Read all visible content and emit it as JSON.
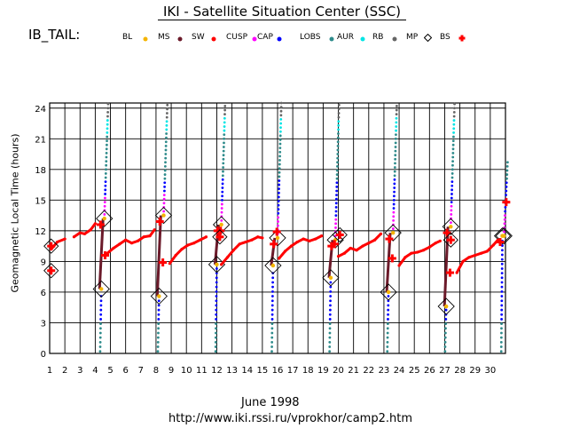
{
  "header": {
    "title": "IKI - Satellite Situation Center (SSC)"
  },
  "panel": {
    "label": "IB_TAIL:"
  },
  "legend": [
    {
      "label": "BL",
      "color": "#f4b400",
      "shape": "dot"
    },
    {
      "label": "MS",
      "color": "#f4b400",
      "shape": "dot"
    },
    {
      "label": "SW",
      "color": "#6b1a2a",
      "shape": "dot"
    },
    {
      "label": "CUSP",
      "color": "#ff0000",
      "shape": "dot"
    },
    {
      "label": "CAP",
      "color": "#ff00ff",
      "shape": "dot"
    },
    {
      "label": "LOBS",
      "color": "#0000ff",
      "shape": "dot"
    },
    {
      "label": "AUR",
      "color": "#2e8b8b",
      "shape": "dot"
    },
    {
      "label": "RB",
      "color": "#00e5e5",
      "shape": "dot"
    },
    {
      "label": "MP",
      "color": "#666666",
      "shape": "dot"
    },
    {
      "label": "BS",
      "color": "#000000",
      "shape": "diamond"
    },
    {
      "label": "",
      "color": "#ff0000",
      "shape": "cross"
    }
  ],
  "footer": {
    "date": "June    1998",
    "url": "http://www.iki.rssi.ru/vprokhor/camp2.htm"
  },
  "chart_data": {
    "type": "scatter",
    "title": "IKI - Satellite Situation Center (SSC)",
    "xlabel": "June 1998",
    "ylabel": "Geomagnetic Local Time (hours)",
    "xlim": [
      1,
      31
    ],
    "ylim": [
      0,
      24.5
    ],
    "xticks": [
      "1",
      "2",
      "3",
      "4",
      "5",
      "6",
      "7",
      "8",
      "9",
      "10",
      "11",
      "12",
      "13",
      "14",
      "15",
      "16",
      "17",
      "18",
      "19",
      "20",
      "21",
      "22",
      "23",
      "24",
      "25",
      "26",
      "27",
      "28",
      "29",
      "30"
    ],
    "yticks": [
      "0",
      "3",
      "6",
      "9",
      "12",
      "15",
      "18",
      "21",
      "24"
    ],
    "grid": true,
    "sw_track": [
      [
        1.1,
        10.2
      ],
      [
        1.5,
        10.9
      ],
      [
        2,
        11.2
      ],
      [
        2.6,
        11.4
      ],
      [
        3,
        11.8
      ],
      [
        3.3,
        11.7
      ],
      [
        3.7,
        12.1
      ],
      [
        4,
        12.7
      ],
      [
        4.8,
        9.8
      ],
      [
        5.2,
        10.3
      ],
      [
        5.6,
        10.7
      ],
      [
        6,
        11.1
      ],
      [
        6.4,
        10.8
      ],
      [
        6.8,
        11.0
      ],
      [
        7.2,
        11.4
      ],
      [
        7.6,
        11.5
      ],
      [
        7.9,
        12.1
      ],
      [
        8.9,
        8.8
      ],
      [
        9.3,
        9.6
      ],
      [
        9.7,
        10.2
      ],
      [
        10.1,
        10.6
      ],
      [
        10.5,
        10.8
      ],
      [
        10.9,
        11.1
      ],
      [
        11.3,
        11.4
      ],
      [
        12.3,
        8.7
      ],
      [
        12.7,
        9.4
      ],
      [
        13.1,
        10.1
      ],
      [
        13.5,
        10.7
      ],
      [
        13.9,
        10.9
      ],
      [
        14.3,
        11.1
      ],
      [
        14.7,
        11.4
      ],
      [
        15.0,
        11.3
      ],
      [
        16.1,
        9.3
      ],
      [
        16.5,
        10.0
      ],
      [
        16.9,
        10.5
      ],
      [
        17.3,
        10.9
      ],
      [
        17.7,
        11.2
      ],
      [
        18.1,
        11.0
      ],
      [
        18.5,
        11.2
      ],
      [
        18.9,
        11.5
      ],
      [
        20.0,
        9.5
      ],
      [
        20.4,
        9.8
      ],
      [
        20.8,
        10.3
      ],
      [
        21.2,
        10.1
      ],
      [
        21.6,
        10.5
      ],
      [
        22.0,
        10.8
      ],
      [
        22.4,
        11.1
      ],
      [
        22.8,
        11.7
      ],
      [
        24.0,
        8.6
      ],
      [
        24.4,
        9.4
      ],
      [
        24.8,
        9.8
      ],
      [
        25.2,
        9.9
      ],
      [
        25.6,
        10.1
      ],
      [
        26.0,
        10.4
      ],
      [
        26.4,
        10.8
      ],
      [
        26.7,
        11.0
      ],
      [
        27.8,
        7.9
      ],
      [
        28.2,
        9.0
      ],
      [
        28.6,
        9.4
      ],
      [
        29.0,
        9.6
      ],
      [
        29.4,
        9.8
      ],
      [
        29.8,
        10.0
      ],
      [
        30.2,
        10.6
      ],
      [
        30.5,
        11.1
      ]
    ],
    "orbits": [
      {
        "x_low": 4.4,
        "x_high": 4.7,
        "bs_low": 6.3,
        "bs_high": 13.2,
        "up_start": 4.6,
        "up_top": 24.5
      },
      {
        "x_low": 8.2,
        "x_high": 8.6,
        "bs_low": 5.6,
        "bs_high": 13.5,
        "up_start": 8.5,
        "up_top": 24.5
      },
      {
        "x_low": 12.0,
        "x_high": 12.4,
        "bs_low": 8.7,
        "bs_high": 12.6,
        "up_start": 12.3,
        "up_top": 24.5
      },
      {
        "x_low": 15.7,
        "x_high": 16.1,
        "bs_low": 8.6,
        "bs_high": 11.3,
        "up_start": 16.0,
        "up_top": 24.5
      },
      {
        "x_low": 19.5,
        "x_high": 19.9,
        "bs_low": 7.4,
        "bs_high": 11.1,
        "up_start": 19.8,
        "up_top": 24.5
      },
      {
        "x_low": 23.3,
        "x_high": 23.7,
        "bs_low": 6.0,
        "bs_high": 11.8,
        "up_start": 23.6,
        "up_top": 24.5
      },
      {
        "x_low": 27.1,
        "x_high": 27.5,
        "bs_low": 4.6,
        "bs_high": 12.4,
        "up_start": 27.4,
        "up_top": 24.5
      },
      {
        "x_low": 30.8,
        "x_high": 31.0,
        "bs_low": 11.5,
        "bs_high": 11.5,
        "up_start": 30.9,
        "up_top": 19.0
      }
    ],
    "extra_bs": [
      [
        1.1,
        8.1
      ],
      [
        1.1,
        10.5
      ],
      [
        12.2,
        11.4
      ],
      [
        20.1,
        11.6
      ],
      [
        27.4,
        11.1
      ]
    ]
  }
}
